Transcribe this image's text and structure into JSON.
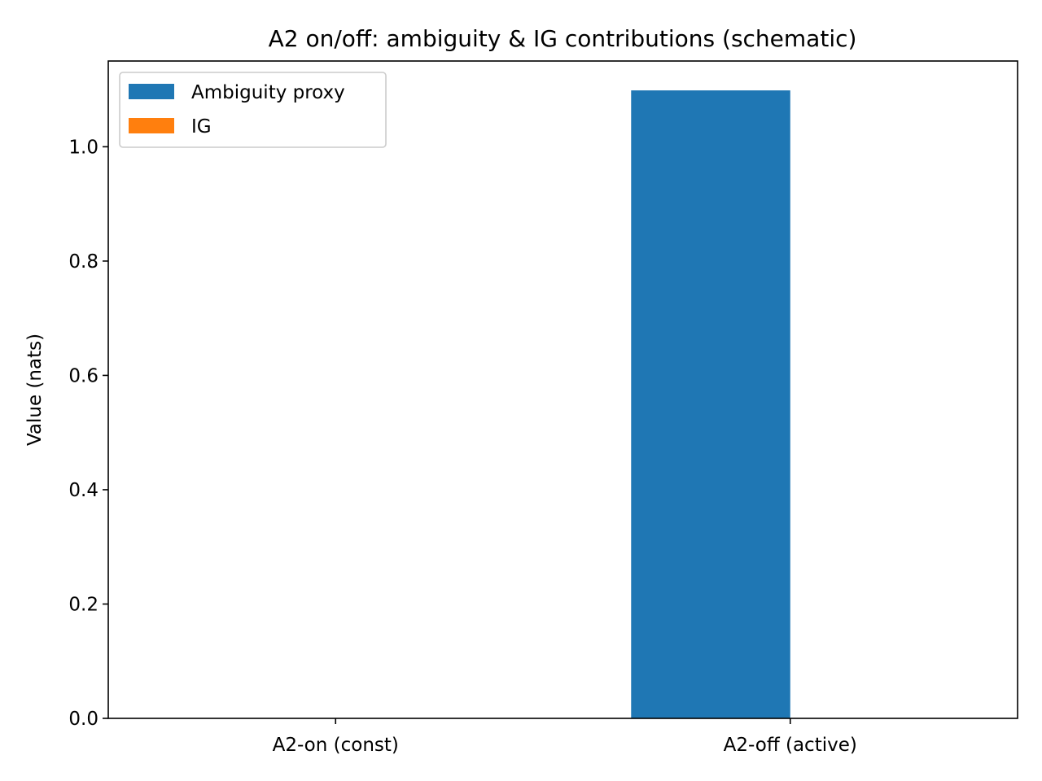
{
  "chart_data": {
    "type": "bar",
    "title": "A2 on/off: ambiguity & IG contributions (schematic)",
    "xlabel": "",
    "ylabel": "Value (nats)",
    "categories": [
      "A2-on (const)",
      "A2-off (active)"
    ],
    "series": [
      {
        "name": "Ambiguity proxy",
        "color": "#1f77b4",
        "values": [
          0.0,
          1.0986
        ]
      },
      {
        "name": "IG",
        "color": "#ff7f0e",
        "values": [
          0.0,
          0.0
        ]
      }
    ],
    "ylim": [
      0,
      1.15
    ],
    "yticks": [
      0.0,
      0.2,
      0.4,
      0.6,
      0.8,
      1.0
    ],
    "ytick_labels": [
      "0.0",
      "0.2",
      "0.4",
      "0.6",
      "0.8",
      "1.0"
    ],
    "grid": false,
    "legend_position": "top-left"
  }
}
